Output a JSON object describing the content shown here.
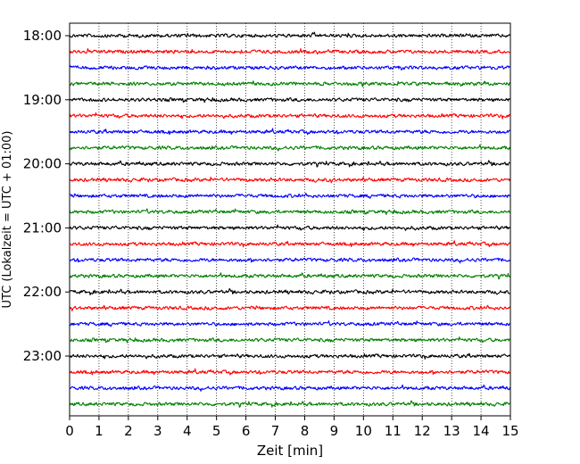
{
  "chart_data": {
    "type": "line",
    "title": "",
    "xlabel": "Zeit  [min]",
    "ylabel": "UTC (Lokalzeit = UTC + 01:00)",
    "xlim": [
      0,
      15
    ],
    "x_ticks": [
      "0",
      "1",
      "2",
      "3",
      "4",
      "5",
      "6",
      "7",
      "8",
      "9",
      "10",
      "11",
      "12",
      "13",
      "14",
      "15"
    ],
    "y_ticks": [
      "18:00",
      "19:00",
      "20:00",
      "21:00",
      "22:00",
      "23:00"
    ],
    "grid": "vertical dotted",
    "legend": "none",
    "trace_interval_min": 15,
    "trace_count": 24,
    "color_cycle": [
      "#000000",
      "#ff0000",
      "#0000ff",
      "#008000"
    ],
    "trace_starts": [
      "18:00",
      "18:15",
      "18:30",
      "18:45",
      "19:00",
      "19:15",
      "19:30",
      "19:45",
      "20:00",
      "20:15",
      "20:30",
      "20:45",
      "21:00",
      "21:15",
      "21:30",
      "21:45",
      "22:00",
      "22:15",
      "22:30",
      "22:45",
      "23:00",
      "23:15",
      "23:30",
      "23:45"
    ]
  },
  "colors": {
    "axes": "#000000",
    "grid": "#000000",
    "background": "#ffffff"
  }
}
